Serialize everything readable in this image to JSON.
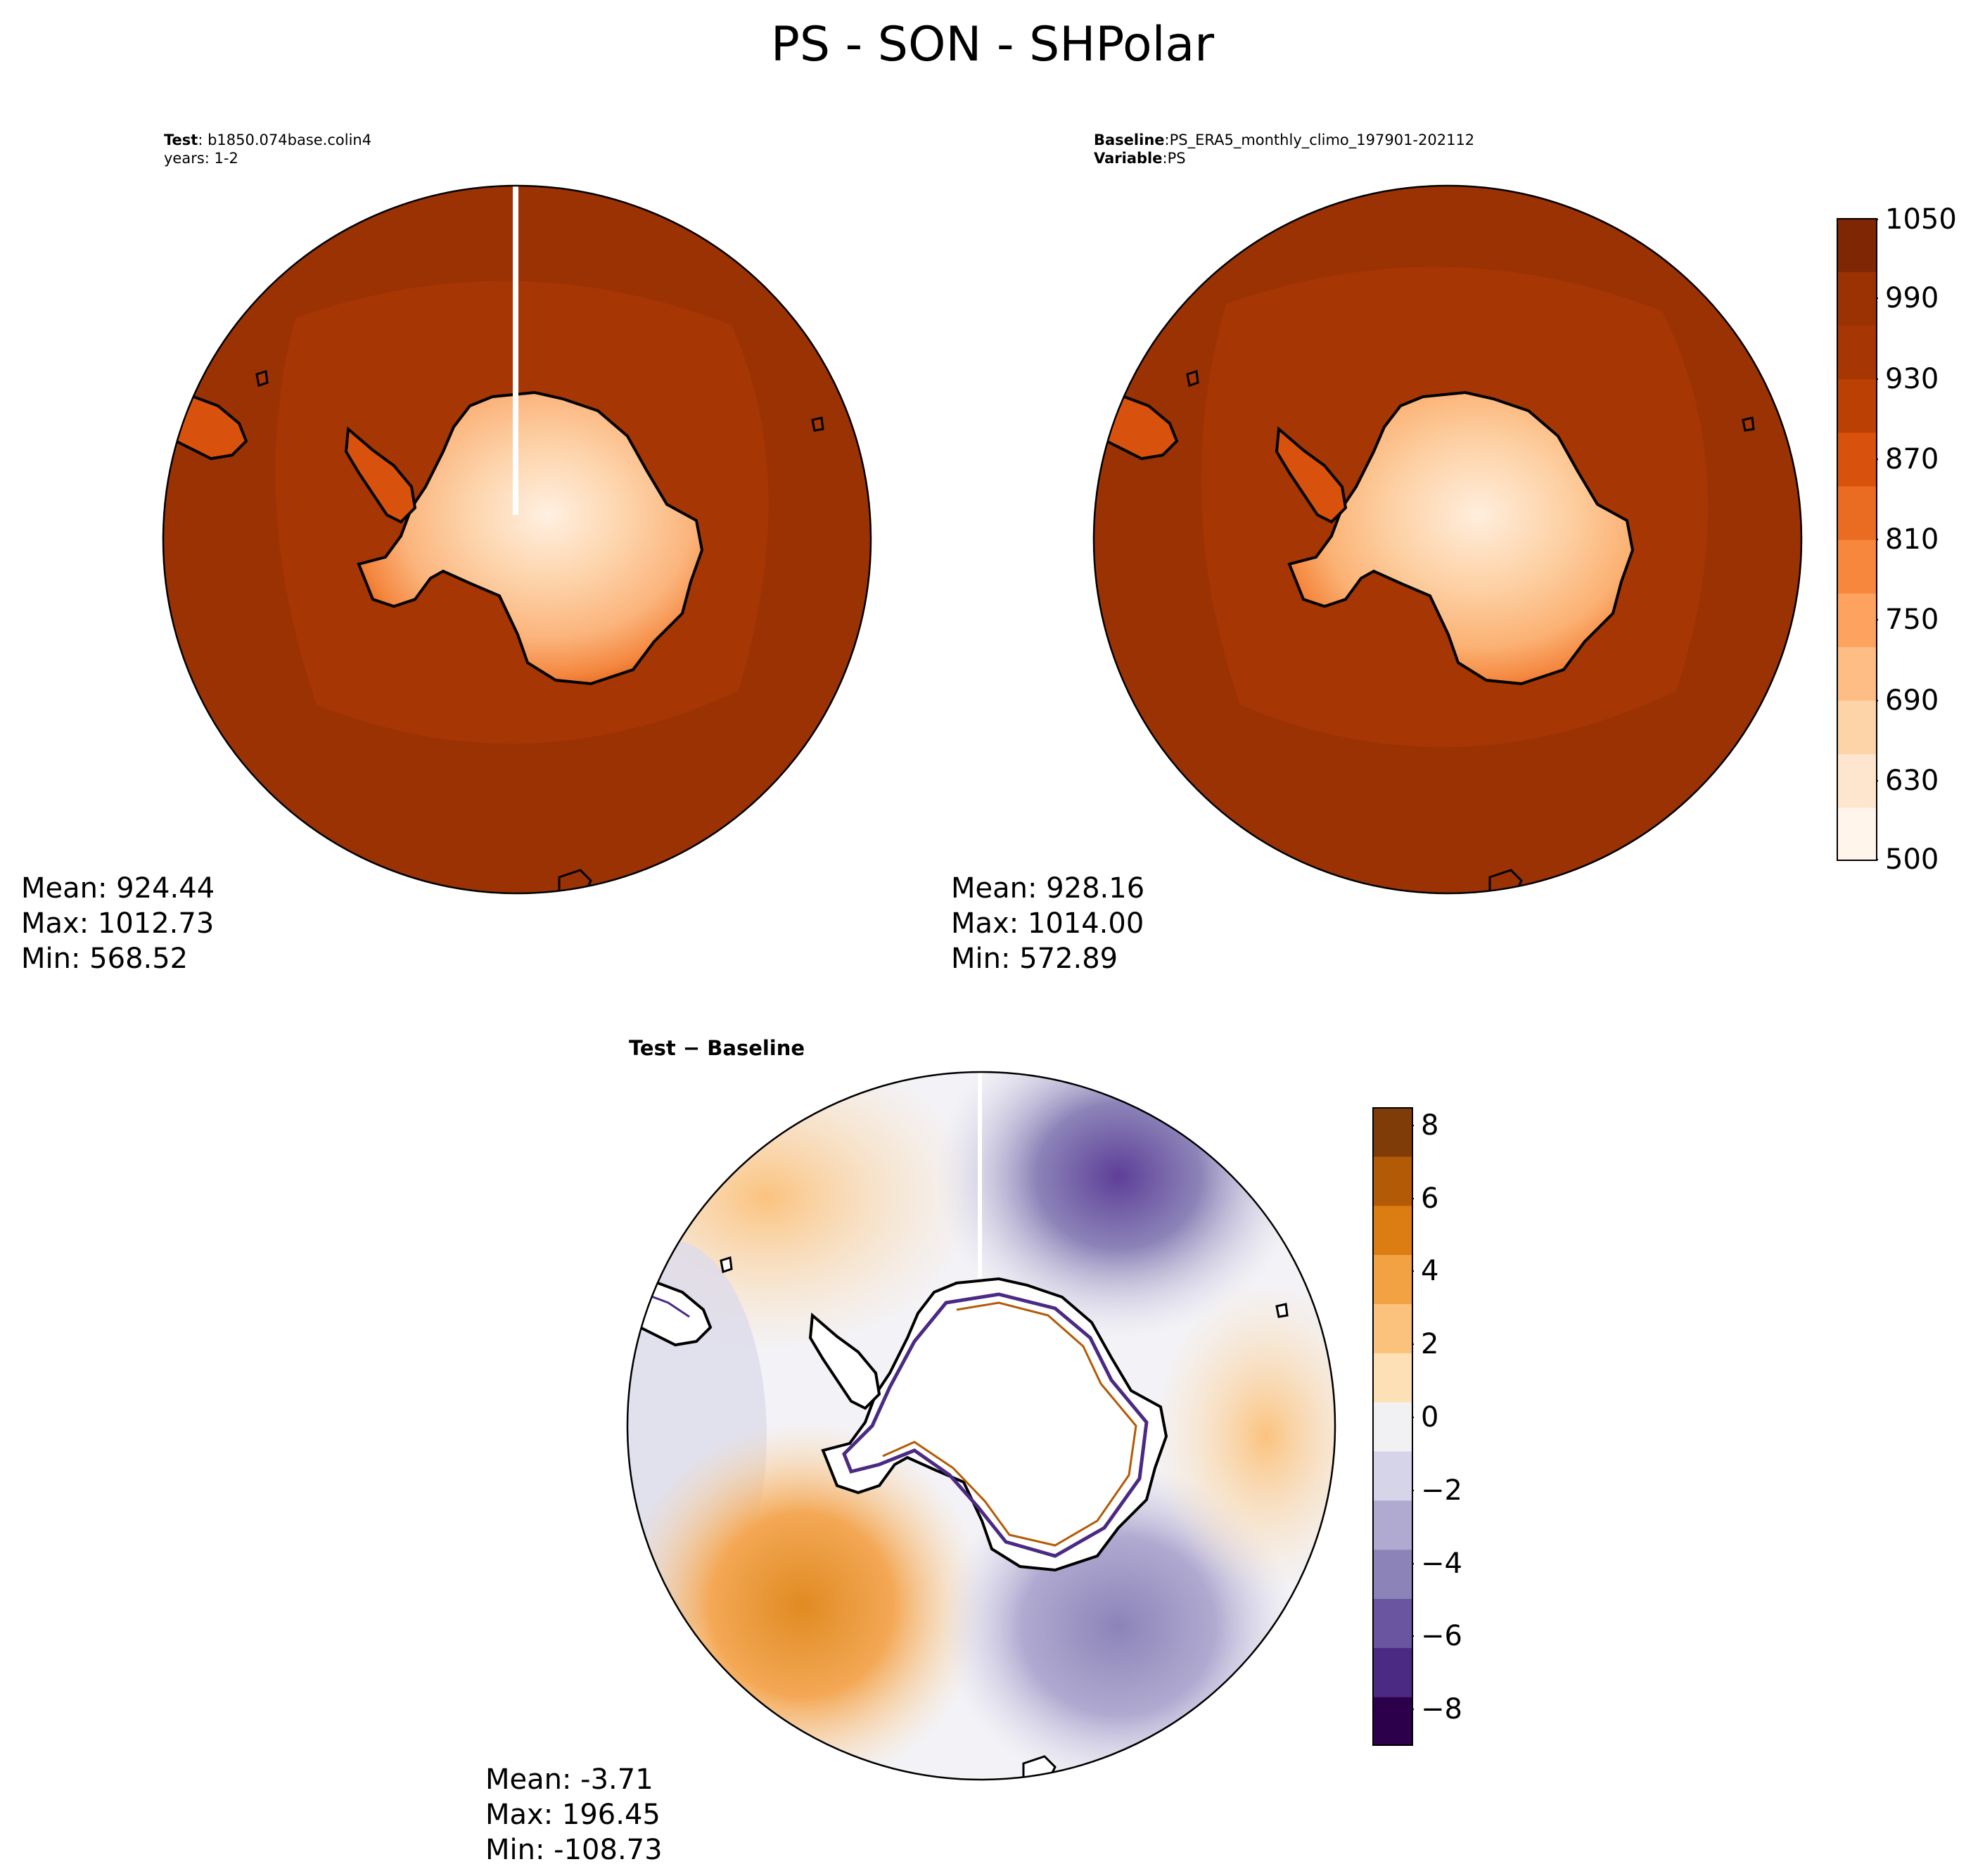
{
  "figure": {
    "title": "PS - SON - SHPolar"
  },
  "panels": {
    "test": {
      "label": "Test",
      "case_name": "b1850.074base.colin4",
      "years_text": "years: 1-2",
      "stats": {
        "mean": "Mean: 924.44",
        "max": "Max: 1012.73",
        "min": "Min: 568.52"
      }
    },
    "baseline": {
      "label": "Baseline",
      "case_name": "PS_ERA5_monthly_climo_197901-202112",
      "variable_label": "Variable",
      "variable": "PS",
      "stats": {
        "mean": "Mean: 928.16",
        "max": "Max: 1014.00",
        "min": "Min: 572.89"
      }
    },
    "difference": {
      "title_left": "Test",
      "title_op": "−",
      "title_right": "Baseline",
      "stats": {
        "mean": "Mean: -3.71",
        "max": "Max: 196.45",
        "min": "Min: -108.73"
      }
    }
  },
  "colorbars": {
    "main": {
      "colormap": "Oranges",
      "range": [
        500,
        1050
      ],
      "ticks": [
        "1050",
        "990",
        "930",
        "870",
        "810",
        "750",
        "690",
        "630",
        "500"
      ],
      "colors": [
        "#fff5eb",
        "#fee6ce",
        "#fdd3a8",
        "#fdbd85",
        "#fda35f",
        "#f8873e",
        "#ea6b22",
        "#d9520d",
        "#bb4004",
        "#a63603",
        "#9a3204",
        "#7f2704"
      ]
    },
    "difference": {
      "colormap": "PuOr_r",
      "range": [
        -9,
        8.5
      ],
      "ticks": [
        "8",
        "6",
        "4",
        "2",
        "0",
        "−2",
        "−4",
        "−6",
        "−8"
      ],
      "colors": [
        "#2d004b",
        "#4b2a84",
        "#6a55a0",
        "#8c84b8",
        "#b0aad1",
        "#d5d4e8",
        "#f1f1f3",
        "#fde0b5",
        "#fbc27e",
        "#f2a143",
        "#dc7d13",
        "#b35a06",
        "#7f3b08"
      ]
    }
  }
}
